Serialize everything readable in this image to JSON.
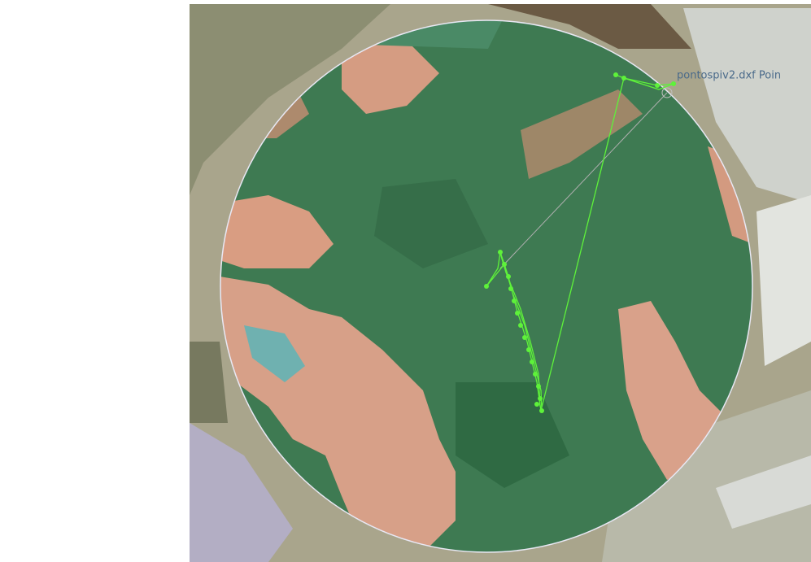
{
  "map": {
    "layer_label": "pontospiv2.dxf Poin"
  }
}
